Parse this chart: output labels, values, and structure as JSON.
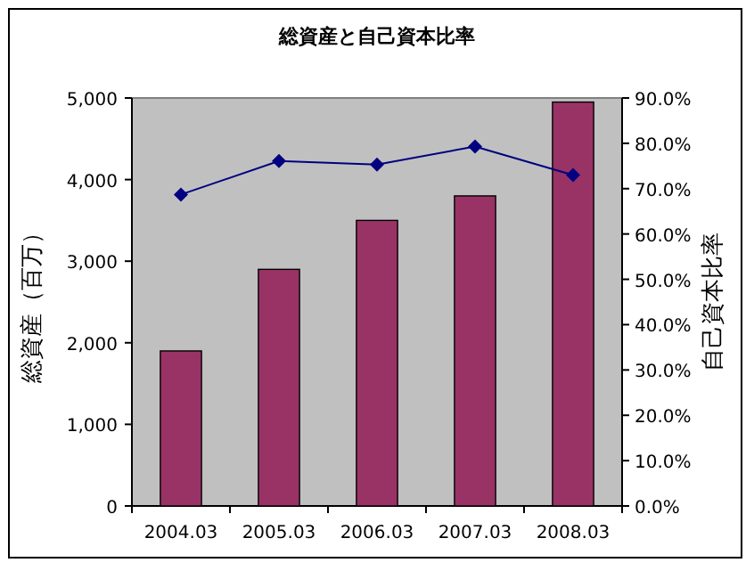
{
  "chart_data": {
    "type": "bar",
    "title": "総資産と自己資本比率",
    "ylabel": "総資産（百万）",
    "y2label": "自己資本比率",
    "categories": [
      "2004.03",
      "2005.03",
      "2006.03",
      "2007.03",
      "2008.03"
    ],
    "series": [
      {
        "color": "#993366",
        "values": [
          1900,
          2900,
          3500,
          3800,
          4950
        ]
      },
      {
        "type": "line",
        "axis": "y2",
        "color": "#000080",
        "marker": "diamond",
        "values": [
          68.7,
          76.1,
          75.3,
          79.3,
          73.0
        ]
      }
    ],
    "ylim": [
      0,
      5000
    ],
    "yticks": [
      0,
      {
        "value": 1000,
        "label": "1,000"
      },
      {
        "value": 2000,
        "label": "2,000"
      },
      {
        "value": 3000,
        "label": "3,000"
      },
      {
        "value": 4000,
        "label": "4,000"
      },
      {
        "value": 5000,
        "label": "5,000"
      }
    ],
    "y2lim": [
      0,
      90
    ],
    "y2ticks": [
      {
        "value": 0,
        "label": "0.0%"
      },
      {
        "value": 10,
        "label": "10.0%"
      },
      {
        "value": 20,
        "label": "20.0%"
      },
      {
        "value": 30,
        "label": "30.0%"
      },
      {
        "value": 40,
        "label": "40.0%"
      },
      {
        "value": 50,
        "label": "50.0%"
      },
      {
        "value": 60,
        "label": "60.0%"
      },
      {
        "value": 70,
        "label": "70.0%"
      },
      {
        "value": 80,
        "label": "80.0%"
      },
      {
        "value": 90,
        "label": "90.0%"
      }
    ],
    "grid": false
  }
}
